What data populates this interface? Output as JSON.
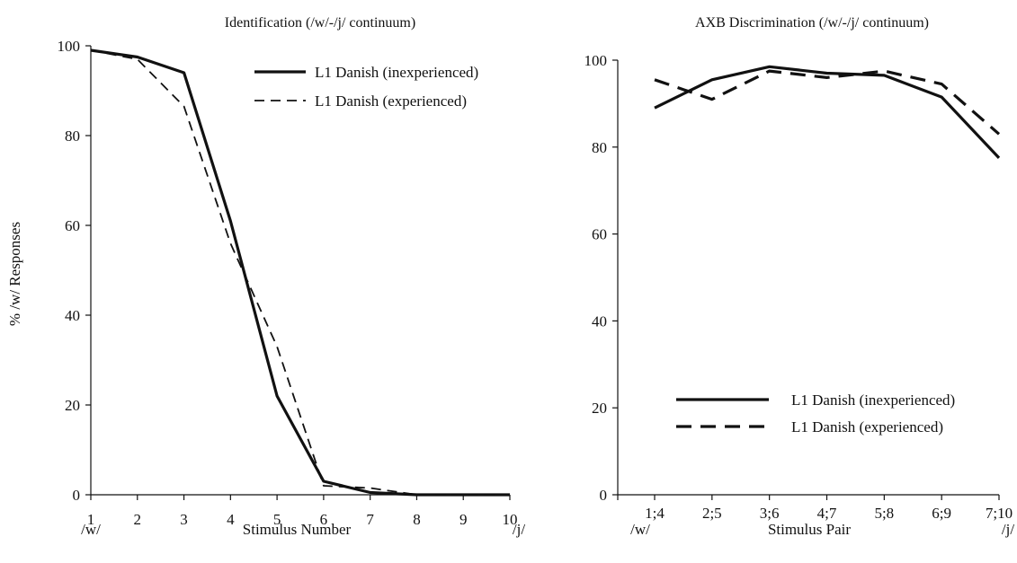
{
  "chart_data": [
    {
      "type": "line",
      "title": "Identification (/w/-/j/ continuum)",
      "xlabel": "Stimulus Number",
      "ylabel": "% /w/ Responses",
      "x_end_labels": [
        "/w/",
        "/j/"
      ],
      "categories": [
        "1",
        "2",
        "3",
        "4",
        "5",
        "6",
        "7",
        "8",
        "9",
        "10"
      ],
      "ylim": [
        0,
        100
      ],
      "yticks": [
        "0",
        "20",
        "40",
        "60",
        "80",
        "100"
      ],
      "grid": false,
      "legend_position": "top-right",
      "series": [
        {
          "name": "L1 Danish (inexperienced)",
          "style": "solid-thick",
          "values": [
            99,
            97.5,
            94,
            61,
            22,
            3,
            0.5,
            0,
            0,
            0
          ]
        },
        {
          "name": "L1 Danish (experienced)",
          "style": "dashed-thin",
          "values": [
            99,
            97,
            86.5,
            56,
            33,
            2,
            1.5,
            0,
            0,
            0
          ]
        }
      ]
    },
    {
      "type": "line",
      "title": "AXB Discrimination (/w/-/j/ continuum)",
      "xlabel": "Stimulus Pair",
      "ylabel": "",
      "x_end_labels": [
        "/w/",
        "/j/"
      ],
      "categories": [
        "1;4",
        "2;5",
        "3;6",
        "4;7",
        "5;8",
        "6;9",
        "7;10"
      ],
      "ylim": [
        0,
        100
      ],
      "yticks": [
        "0",
        "20",
        "40",
        "60",
        "80",
        "100"
      ],
      "grid": false,
      "legend_position": "bottom-right",
      "series": [
        {
          "name": "L1 Danish (inexperienced)",
          "style": "solid-thick",
          "values": [
            89,
            95.5,
            98.5,
            97,
            96.5,
            91.5,
            77.5
          ]
        },
        {
          "name": "L1 Danish (experienced)",
          "style": "dashed-thick",
          "values": [
            95.5,
            91,
            97.5,
            96,
            97.5,
            94.5,
            83
          ]
        }
      ]
    }
  ]
}
